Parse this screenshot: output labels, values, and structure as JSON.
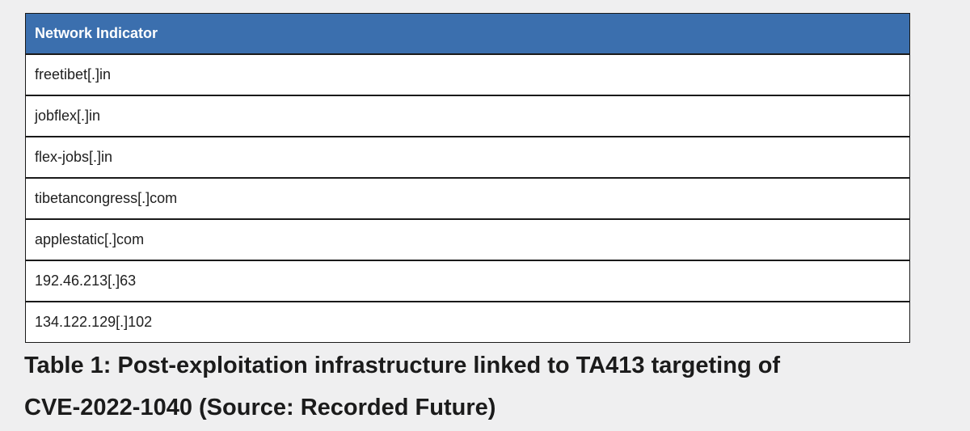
{
  "table": {
    "header": "Network Indicator",
    "rows": [
      "freetibet[.]in",
      "jobflex[.]in",
      "flex-jobs[.]in",
      "tibetancongress[.]com",
      "applestatic[.]com",
      "192.46.213[.]63",
      "134.122.129[.]102"
    ]
  },
  "caption": {
    "line1": "Table 1: Post-exploitation infrastructure linked to TA413 targeting of",
    "line2": "CVE-2022-1040 (Source: Recorded Future)"
  },
  "colors": {
    "header_bg": "#3b6fae",
    "page_bg": "#efeff0"
  }
}
